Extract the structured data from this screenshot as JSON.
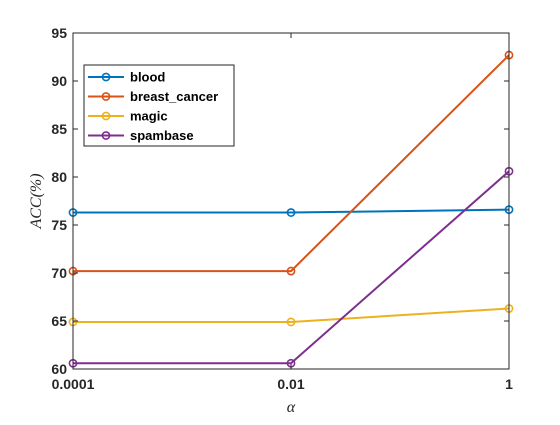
{
  "chart_data": {
    "type": "line",
    "x": [
      "0.0001",
      "0.01",
      "1"
    ],
    "xlabel": "α",
    "ylabel": "ACC(%)",
    "ylim": [
      60,
      95
    ],
    "yticks": [
      60,
      65,
      70,
      75,
      80,
      85,
      90,
      95
    ],
    "xscale": "log",
    "grid": false,
    "legend_position": "top-left",
    "series": [
      {
        "name": "blood",
        "color": "#0072BD",
        "values": [
          76.3,
          76.3,
          76.6
        ],
        "marker": "circle"
      },
      {
        "name": "breast_cancer",
        "color": "#D95319",
        "values": [
          70.2,
          70.2,
          92.7
        ],
        "marker": "circle"
      },
      {
        "name": "magic",
        "color": "#EDB120",
        "values": [
          64.9,
          64.9,
          66.3
        ],
        "marker": "circle"
      },
      {
        "name": "spambase",
        "color": "#7E2F8E",
        "values": [
          60.6,
          60.6,
          80.6
        ],
        "marker": "circle"
      }
    ]
  }
}
